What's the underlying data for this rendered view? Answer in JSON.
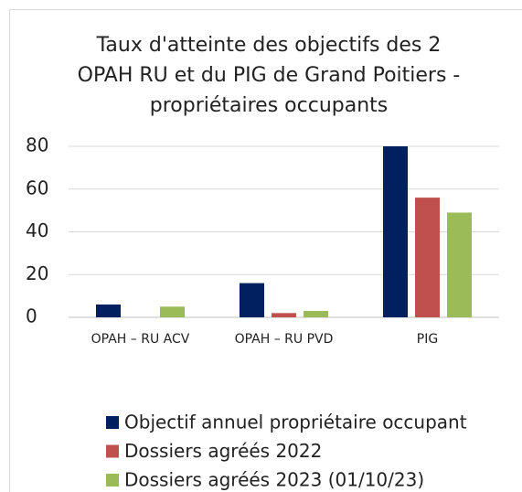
{
  "chart_data": {
    "type": "bar",
    "title": "Taux d'atteinte des objectifs des 2 OPAH RU et du PIG de Grand Poitiers - propriétaires occupants",
    "categories": [
      "OPAH – RU ACV",
      "OPAH – RU PVD",
      "PIG"
    ],
    "series": [
      {
        "name": "Objectif annuel propriétaire occupant",
        "color": "#002060",
        "values": [
          6,
          16,
          80
        ]
      },
      {
        "name": "Dossiers agréés 2022",
        "color": "#c0504d",
        "values": [
          0,
          2,
          56
        ]
      },
      {
        "name": "Dossiers agréés 2023 (01/10/23)",
        "color": "#9bbb59",
        "values": [
          5,
          3,
          49
        ]
      }
    ],
    "ylim": [
      0,
      80
    ],
    "yticks": [
      0,
      20,
      40,
      60,
      80
    ],
    "grid": true,
    "legend": "bottom"
  }
}
